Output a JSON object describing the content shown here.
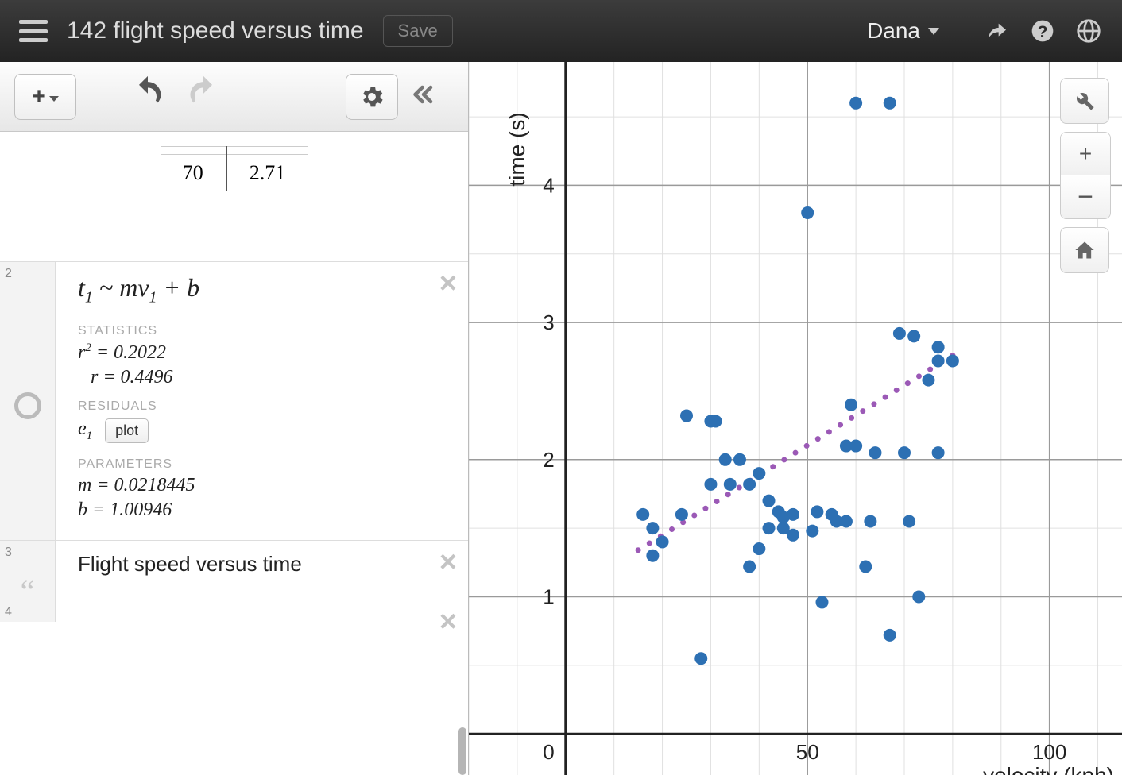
{
  "header": {
    "title": "142 flight speed versus time",
    "save_label": "Save",
    "user_name": "Dana"
  },
  "table_row": {
    "x": "70",
    "y": "2.71"
  },
  "regression": {
    "index": "2",
    "formula_html": "t<sub>1</sub> ~ mv<sub>1</sub> + b",
    "stats_label": "STATISTICS",
    "r2_label": "r",
    "r2_value": "0.2022",
    "r_label": "r",
    "r_value": "0.4496",
    "residuals_label": "RESIDUALS",
    "residual_var": "e",
    "plot_label": "plot",
    "parameters_label": "PARAMETERS",
    "m_value": "0.0218445",
    "b_value": "1.00946"
  },
  "note": {
    "index": "3",
    "text": "Flight speed versus time"
  },
  "next_index": "4",
  "chart": {
    "type": "scatter",
    "xlabel": "velocity (kph)",
    "ylabel": "time (s)",
    "xlim": [
      -20,
      115
    ],
    "ylim": [
      -0.3,
      4.9
    ],
    "xticks": [
      0,
      50,
      100
    ],
    "yticks": [
      1,
      2,
      3,
      4
    ],
    "major_grid_color": "#9a9a9a",
    "minor_grid_color": "#e0e0e0",
    "axis_color": "#222222",
    "background": "#ffffff",
    "point_color": "#2d70b3",
    "point_radius": 8,
    "trend_color": "#9b59b6",
    "trend_from": [
      15,
      1.34
    ],
    "trend_to": [
      80,
      2.76
    ],
    "trend_dot_radius": 3.5,
    "points": [
      [
        60,
        4.6
      ],
      [
        67,
        4.6
      ],
      [
        50,
        3.8
      ],
      [
        69,
        2.92
      ],
      [
        72,
        2.9
      ],
      [
        77,
        2.82
      ],
      [
        77,
        2.72
      ],
      [
        80,
        2.72
      ],
      [
        75,
        2.58
      ],
      [
        25,
        2.32
      ],
      [
        30,
        2.28
      ],
      [
        31,
        2.28
      ],
      [
        59,
        2.4
      ],
      [
        77,
        2.05
      ],
      [
        70,
        2.05
      ],
      [
        58,
        2.1
      ],
      [
        60,
        2.1
      ],
      [
        64,
        2.05
      ],
      [
        33,
        2.0
      ],
      [
        36,
        2.0
      ],
      [
        30,
        1.82
      ],
      [
        34,
        1.82
      ],
      [
        38,
        1.82
      ],
      [
        40,
        1.9
      ],
      [
        42,
        1.7
      ],
      [
        44,
        1.62
      ],
      [
        45,
        1.58
      ],
      [
        47,
        1.6
      ],
      [
        52,
        1.62
      ],
      [
        55,
        1.6
      ],
      [
        56,
        1.55
      ],
      [
        58,
        1.55
      ],
      [
        63,
        1.55
      ],
      [
        71,
        1.55
      ],
      [
        42,
        1.5
      ],
      [
        45,
        1.5
      ],
      [
        47,
        1.45
      ],
      [
        51,
        1.48
      ],
      [
        40,
        1.35
      ],
      [
        16,
        1.6
      ],
      [
        18,
        1.5
      ],
      [
        20,
        1.4
      ],
      [
        24,
        1.6
      ],
      [
        18,
        1.3
      ],
      [
        38,
        1.22
      ],
      [
        62,
        1.22
      ],
      [
        53,
        0.96
      ],
      [
        73,
        1.0
      ],
      [
        67,
        0.72
      ],
      [
        28,
        0.55
      ]
    ]
  }
}
